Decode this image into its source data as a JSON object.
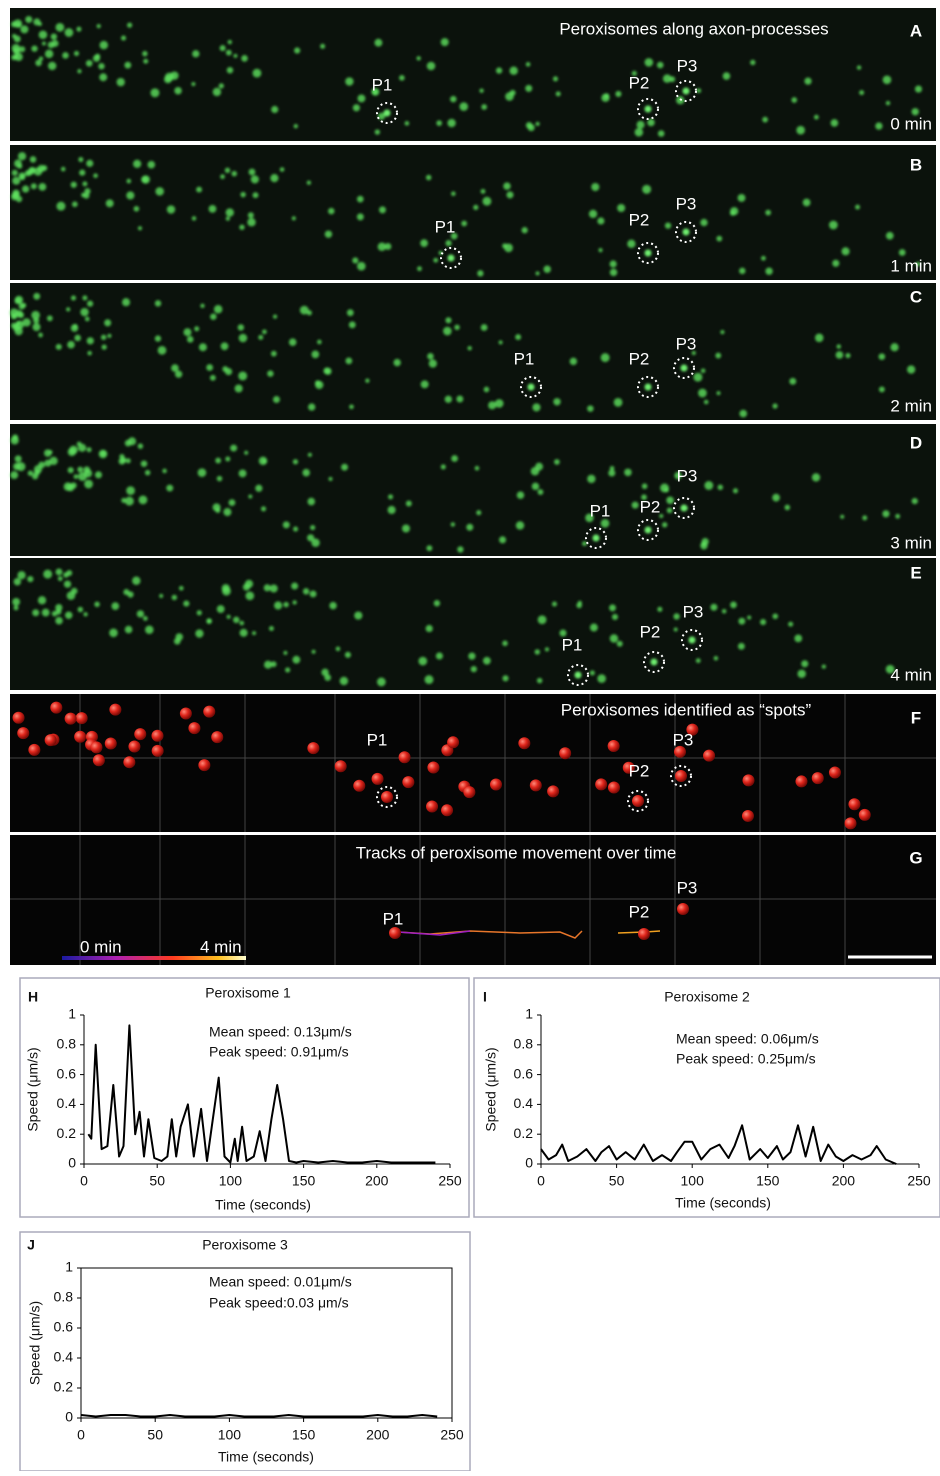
{
  "panels": [
    {
      "letter": "A",
      "title": "Peroxisomes along axon-processes",
      "labels": [
        "P1",
        "P2",
        "P3"
      ],
      "time": "0 min"
    },
    {
      "letter": "B",
      "labels": [
        "P1",
        "P2",
        "P3"
      ],
      "time": "1 min"
    },
    {
      "letter": "C",
      "labels": [
        "P1",
        "P2",
        "P3"
      ],
      "time": "2 min"
    },
    {
      "letter": "D",
      "labels": [
        "P1",
        "P2",
        "P3"
      ],
      "time": "3 min"
    },
    {
      "letter": "E",
      "labels": [
        "P1",
        "P2",
        "P3"
      ],
      "time": "4 min"
    },
    {
      "letter": "F",
      "title": "Peroxisomes identified as “spots”",
      "labels": [
        "P1",
        "P2",
        "P3"
      ]
    },
    {
      "letter": "G",
      "title": "Tracks of peroxisome movement over time",
      "labels": [
        "P1",
        "P2",
        "P3"
      ],
      "legend": [
        "0 min",
        "4 min"
      ]
    }
  ],
  "chart_data": [
    {
      "type": "line",
      "letter": "H",
      "title": "Peroxisome  1",
      "annotations": [
        "Mean speed: 0.13μm/s",
        "Peak speed:  0.91μm/s"
      ],
      "ylabel": "Speed (μm/s)",
      "xlabel": "Time (seconds)",
      "color": "#000000",
      "xlim": [
        0,
        250
      ],
      "xticks": [
        0,
        50,
        100,
        150,
        200,
        250
      ],
      "ylim": [
        0,
        1
      ],
      "yticks": [
        0,
        0.2,
        0.4,
        0.6,
        0.8,
        1
      ],
      "x": [
        3,
        5,
        8,
        12,
        16,
        20,
        24,
        27,
        31,
        35,
        38,
        41,
        44,
        48,
        53,
        57,
        60,
        63,
        66,
        71,
        75,
        80,
        84,
        88,
        92,
        96,
        100,
        103,
        105,
        108,
        111,
        116,
        120,
        124,
        128,
        132,
        136,
        140,
        145,
        150,
        160,
        170,
        180,
        190,
        200,
        210,
        220,
        230,
        240
      ],
      "values": [
        0.2,
        0.17,
        0.8,
        0.1,
        0.12,
        0.53,
        0.05,
        0.12,
        0.93,
        0.2,
        0.35,
        0.05,
        0.3,
        0.04,
        0.02,
        0.05,
        0.3,
        0.05,
        0.25,
        0.4,
        0.05,
        0.37,
        0.02,
        0.3,
        0.58,
        0.05,
        0.01,
        0.17,
        0.02,
        0.25,
        0.02,
        0.05,
        0.22,
        0.02,
        0.3,
        0.53,
        0.3,
        0.02,
        0.01,
        0.02,
        0.01,
        0.02,
        0.01,
        0.01,
        0.02,
        0.01,
        0.01,
        0.01,
        0.01
      ]
    },
    {
      "type": "line",
      "letter": "I",
      "title": "Peroxisome 2",
      "annotations": [
        "Mean speed: 0.06μm/s",
        "Peak speed:  0.25μm/s"
      ],
      "ylabel": "Speed (μm/s)",
      "xlabel": "Time (seconds)",
      "color": "#000000",
      "xlim": [
        0,
        250
      ],
      "xticks": [
        0,
        50,
        100,
        150,
        200,
        250
      ],
      "ylim": [
        0,
        1
      ],
      "yticks": [
        0,
        0.2,
        0.4,
        0.6,
        0.8,
        1
      ],
      "x": [
        0,
        5,
        10,
        14,
        18,
        24,
        30,
        36,
        40,
        45,
        50,
        56,
        62,
        68,
        74,
        80,
        86,
        90,
        95,
        100,
        106,
        112,
        118,
        124,
        128,
        133,
        138,
        145,
        150,
        156,
        160,
        165,
        170,
        175,
        180,
        185,
        190,
        195,
        200,
        206,
        212,
        218,
        222,
        228,
        235
      ],
      "values": [
        0.1,
        0.03,
        0.06,
        0.13,
        0.02,
        0.05,
        0.1,
        0.02,
        0.08,
        0.12,
        0.03,
        0.08,
        0.03,
        0.13,
        0.02,
        0.06,
        0.02,
        0.08,
        0.15,
        0.15,
        0.03,
        0.1,
        0.13,
        0.04,
        0.12,
        0.26,
        0.03,
        0.1,
        0.04,
        0.12,
        0.03,
        0.08,
        0.26,
        0.05,
        0.25,
        0.02,
        0.13,
        0.05,
        0.02,
        0.06,
        0.03,
        0.06,
        0.12,
        0.03,
        0
      ]
    },
    {
      "type": "line",
      "letter": "J",
      "title": "Peroxisome 3",
      "annotations": [
        "Mean speed: 0.01μm/s",
        "Peak speed:0.03 μm/s"
      ],
      "ylabel": "Speed (μm/s)",
      "xlabel": "Time (seconds)",
      "color": "#000000",
      "xlim": [
        0,
        250
      ],
      "xticks": [
        0,
        50,
        100,
        150,
        200,
        250
      ],
      "ylim": [
        0,
        1
      ],
      "yticks": [
        0,
        0.2,
        0.4,
        0.6,
        0.8,
        1
      ],
      "x": [
        0,
        10,
        20,
        30,
        40,
        50,
        60,
        70,
        80,
        90,
        100,
        110,
        120,
        130,
        140,
        150,
        160,
        170,
        180,
        190,
        200,
        210,
        220,
        230,
        240
      ],
      "values": [
        0.02,
        0.01,
        0.02,
        0.02,
        0.01,
        0.01,
        0.02,
        0.01,
        0.01,
        0.01,
        0.02,
        0.01,
        0.01,
        0.01,
        0.02,
        0.01,
        0.01,
        0.01,
        0.01,
        0.01,
        0.02,
        0.01,
        0.01,
        0.02,
        0.01
      ]
    }
  ]
}
